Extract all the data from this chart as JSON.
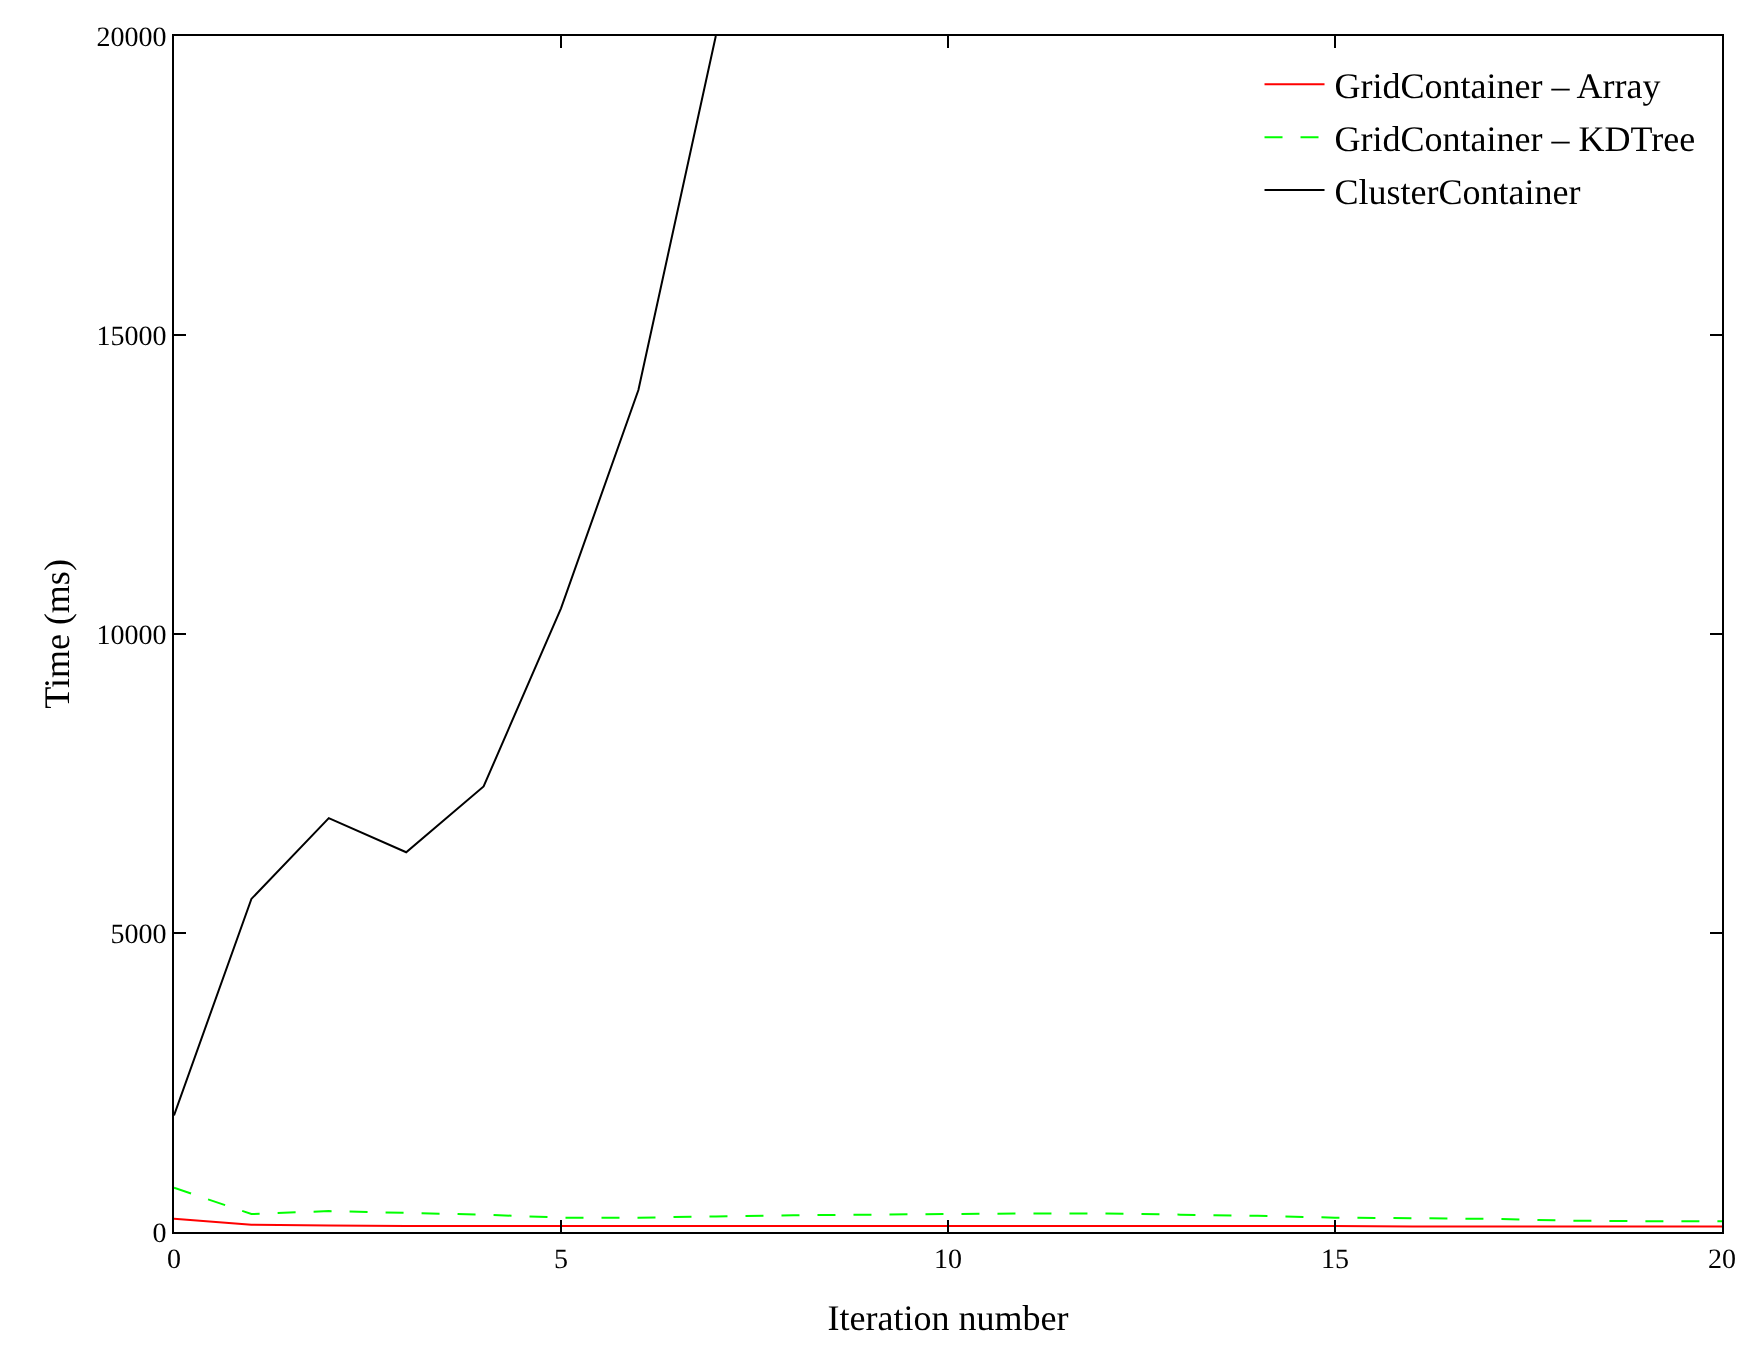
{
  "chart_data": {
    "type": "line",
    "xlabel": "Iteration number",
    "ylabel": "Time (ms)",
    "xlim": [
      0,
      20
    ],
    "xticks": [
      0,
      5,
      10,
      15,
      20
    ],
    "ylim": [
      0,
      20000
    ],
    "yticks": [
      0,
      5000,
      10000,
      15000,
      20000
    ],
    "legend": "top right",
    "marker": "none",
    "x": [
      0,
      1,
      2,
      3,
      4,
      5,
      6,
      7,
      8,
      9,
      10,
      11,
      12,
      13,
      14,
      15,
      16,
      17,
      18,
      19,
      20
    ],
    "series": [
      {
        "name": "GridContainer – Array",
        "color": "#ff0000",
        "line_style": "solid",
        "values": [
          220,
          120,
          110,
          100,
          100,
          100,
          100,
          100,
          100,
          100,
          100,
          100,
          100,
          100,
          100,
          100,
          90,
          90,
          90,
          90,
          90
        ]
      },
      {
        "name": "GridContainer – KDTree",
        "color": "#00ff00",
        "line_style": "dashed",
        "values": [
          740,
          300,
          350,
          320,
          290,
          240,
          240,
          260,
          280,
          290,
          300,
          310,
          310,
          290,
          270,
          240,
          230,
          220,
          190,
          180,
          180
        ]
      },
      {
        "name": "ClusterContainer",
        "color": "#000000",
        "line_style": "solid",
        "values": [
          1950,
          5570,
          6920,
          6350,
          7450,
          10430,
          14080,
          20000,
          null,
          null,
          null,
          null,
          null,
          null,
          null,
          null,
          null,
          null,
          null,
          null,
          null
        ]
      }
    ]
  }
}
